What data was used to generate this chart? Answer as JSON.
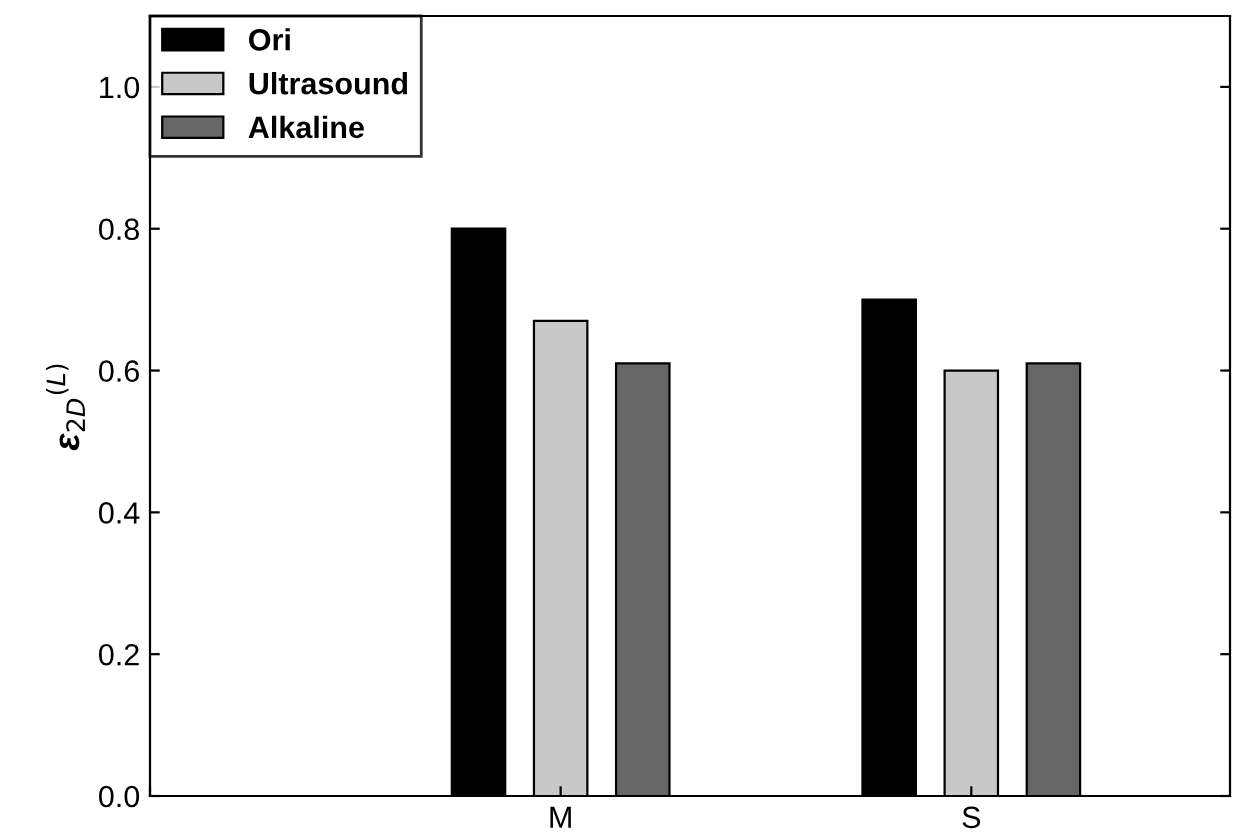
{
  "chart_data": {
    "type": "bar",
    "ylabel": "ε$_{2D}$$^{(L)}$",
    "categories": [
      null,
      "M",
      "S"
    ],
    "series": [
      {
        "name": "Ori",
        "color": "#000000",
        "values": [
          null,
          0.8,
          0.7
        ]
      },
      {
        "name": "Ultrasound",
        "color": "#c8c8c8",
        "values": [
          null,
          0.67,
          0.6
        ]
      },
      {
        "name": "Alkaline",
        "color": "#666666",
        "values": [
          null,
          0.61,
          0.61
        ]
      }
    ],
    "ylim": [
      0,
      1.1
    ],
    "yticks": [
      {
        "value": 0,
        "label": "0.0"
      },
      {
        "value": 0.2,
        "label": "0.2"
      },
      {
        "value": 0.4,
        "label": "0.4"
      },
      {
        "value": 0.6,
        "label": "0.6"
      },
      {
        "value": 0.8,
        "label": "0.8"
      },
      {
        "value": 1.0,
        "label": "1.0"
      }
    ],
    "grid": false,
    "legend": "top left"
  }
}
